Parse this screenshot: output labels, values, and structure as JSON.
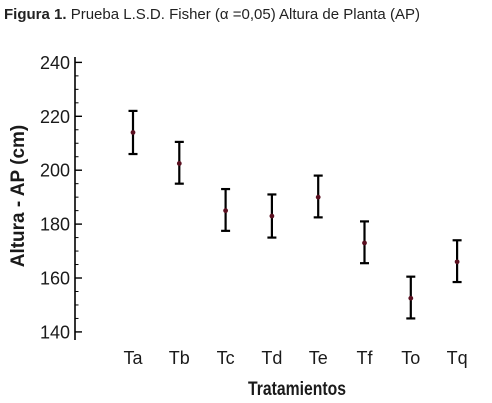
{
  "caption": {
    "label": "Figura 1.",
    "text": "Prueba L.S.D. Fisher (α =0,05) Altura de Planta (AP)"
  },
  "chart_data": {
    "type": "errorbar",
    "xlabel": "Tratamientos",
    "ylabel": "Altura - AP (cm)",
    "ylim": [
      137,
      242
    ],
    "yticks": [
      140,
      160,
      180,
      200,
      220,
      240
    ],
    "categories": [
      "Ta",
      "Tb",
      "Tc",
      "Td",
      "Te",
      "Tf",
      "To",
      "Tq"
    ],
    "means": [
      214,
      202.5,
      185,
      183,
      190,
      173,
      152.5,
      166
    ],
    "lower": [
      206,
      195,
      177.5,
      175,
      182.5,
      165.5,
      145,
      158.5
    ],
    "upper": [
      222,
      210.5,
      193,
      191,
      198,
      181,
      160.5,
      174
    ],
    "marker_color": "#5a1020",
    "bar_color": "#000000",
    "grid": false
  }
}
